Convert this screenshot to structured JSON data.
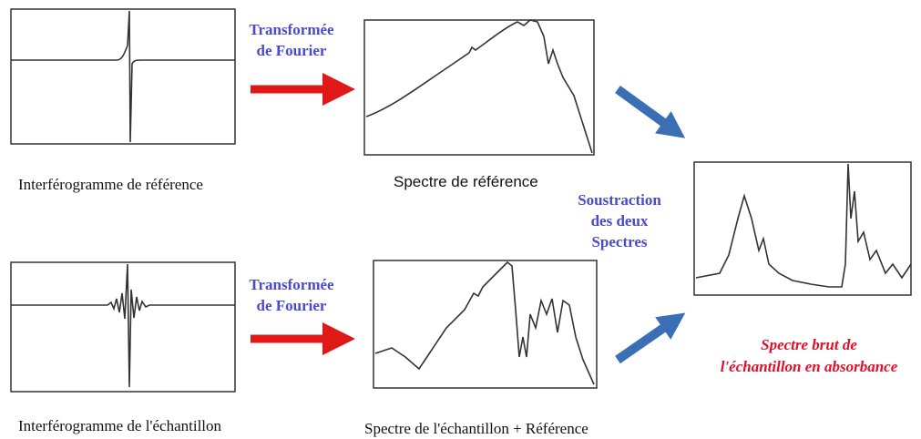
{
  "top": {
    "transform": [
      "Transformée",
      "de Fourier"
    ],
    "interferogram_label": "Interférogramme de référence",
    "spectrum_label": "Spectre de référence"
  },
  "bottom": {
    "transform": [
      "Transformée",
      "de Fourier"
    ],
    "interferogram_label": "Interférogramme de l'échantillon",
    "spectrum_label": "Spectre de l'échantillon  +  Référence"
  },
  "subtraction": [
    "Soustraction",
    "des deux",
    "Spectres"
  ],
  "result": [
    "Spectre brut de",
    "l'échantillon en absorbance"
  ]
}
